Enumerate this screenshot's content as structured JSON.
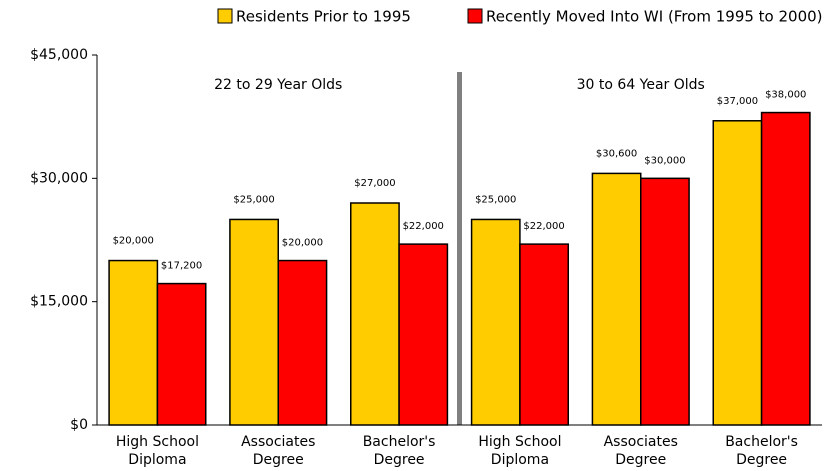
{
  "chart_data": {
    "type": "bar",
    "categories": [
      [
        "High School",
        "Diploma"
      ],
      [
        "Associates",
        "Degree"
      ],
      [
        "Bachelor's",
        "Degree"
      ],
      [
        "High School",
        "Diploma"
      ],
      [
        "Associates",
        "Degree"
      ],
      [
        "Bachelor's",
        "Degree"
      ]
    ],
    "annotations": [
      "22 to 29 Year Olds",
      "30 to 64 Year Olds"
    ],
    "series": [
      {
        "name": "Residents Prior to 1995",
        "color": "#ffcc00",
        "values": [
          20000,
          25000,
          27000,
          25000,
          30600,
          37000
        ],
        "value_labels": [
          "$20,000",
          "$25,000",
          "$27,000",
          "$25,000",
          "$30,600",
          "$37,000"
        ]
      },
      {
        "name": "Recently Moved Into WI (From 1995 to 2000)",
        "color": "#ff0000",
        "values": [
          17200,
          20000,
          22000,
          22000,
          30000,
          38000
        ],
        "value_labels": [
          "$17,200",
          "$20,000",
          "$22,000",
          "$22,000",
          "$30,000",
          "$38,000"
        ]
      }
    ],
    "ylim": [
      0,
      45000
    ],
    "yticks": [
      {
        "value": 0,
        "label": "$0"
      },
      {
        "value": 15000,
        "label": "$15,000"
      },
      {
        "value": 30000,
        "label": "$30,000"
      },
      {
        "value": 45000,
        "label": "$45,000"
      }
    ],
    "legend": "top"
  }
}
